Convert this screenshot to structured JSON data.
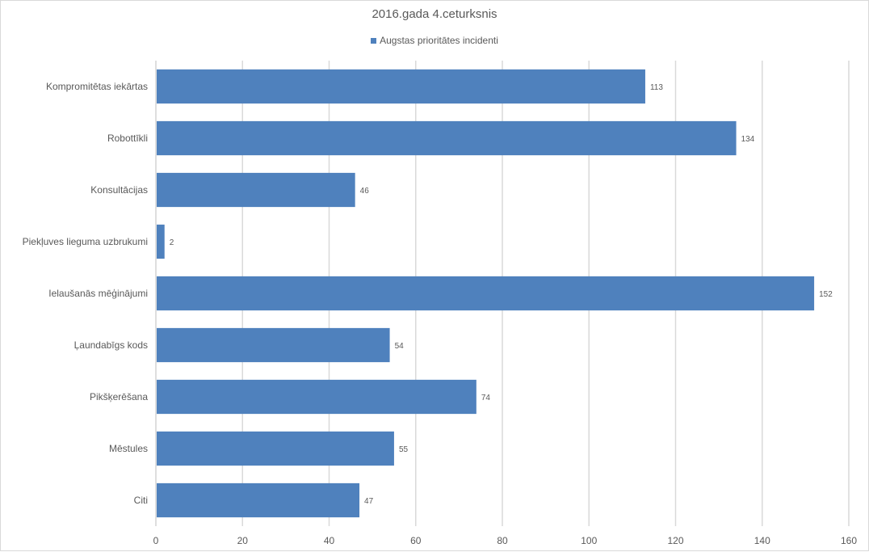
{
  "chart_data": {
    "type": "bar",
    "orientation": "horizontal",
    "title": "2016.gada 4.ceturksnis",
    "xlabel": "",
    "ylabel": "",
    "categories": [
      "Kompromitētas iekārtas",
      "Robottīkli",
      "Konsultācijas",
      "Piekļuves lieguma uzbrukumi",
      "Ielaušanās mēģinājumi",
      "Ļaundabīgs kods",
      "Pikšķerēšana",
      "Mēstules",
      "Citi"
    ],
    "series": [
      {
        "name": "Augstas prioritātes incidenti",
        "values": [
          113,
          134,
          46,
          2,
          152,
          54,
          74,
          55,
          47
        ],
        "color": "#4f81bd"
      }
    ],
    "xlim": [
      0,
      160
    ],
    "xticks": [
      0,
      20,
      40,
      60,
      80,
      100,
      120,
      140,
      160
    ],
    "grid": true,
    "legend_position": "top",
    "data_labels": true
  }
}
